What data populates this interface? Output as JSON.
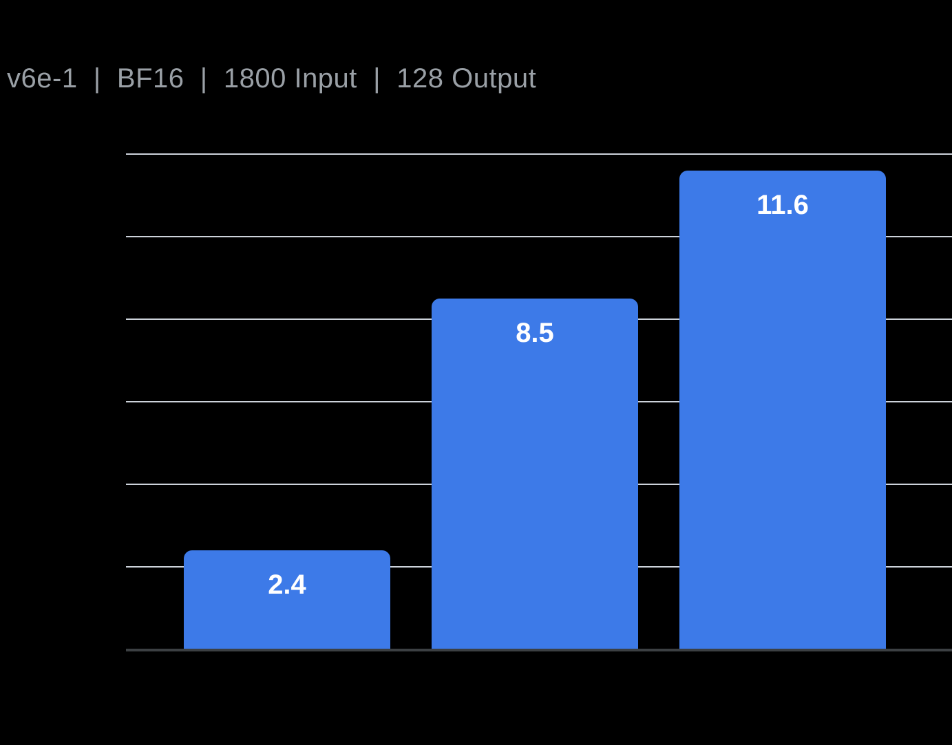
{
  "chart_data": {
    "type": "bar",
    "title": "v6e-1  |  BF16  |  1800 Input  |  128 Output",
    "values": [
      2.4,
      8.5,
      11.6
    ],
    "bar_labels": [
      "2.4",
      "8.5",
      "11.6"
    ],
    "xlabel": "",
    "ylabel": "",
    "ylim": [
      0,
      12
    ],
    "gridline_step": 2,
    "grid": true,
    "legend_position": "none",
    "axis_tick_labels_visible": false,
    "colors": {
      "background": "#000000",
      "bar": "#3D7AE8",
      "bar_label": "#FFFFFF",
      "title": "#9AA0A6",
      "gridline": "#CDD3DB",
      "axis_line": "#3C4043"
    }
  }
}
